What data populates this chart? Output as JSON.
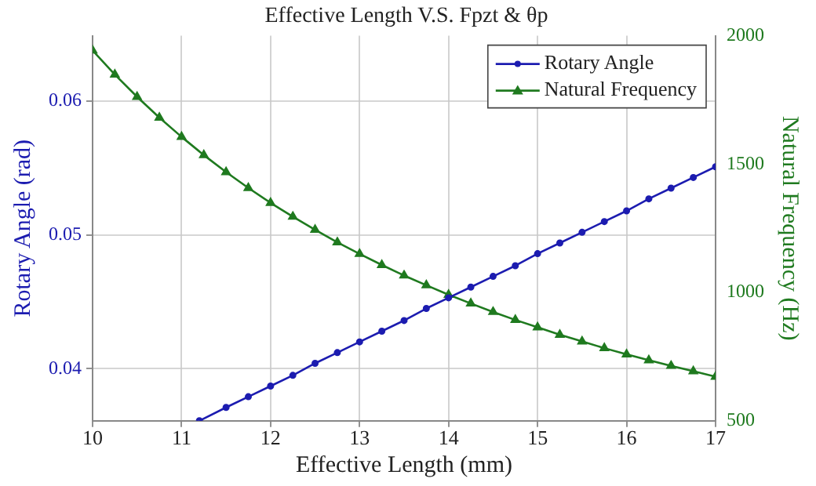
{
  "chart_data": {
    "type": "line",
    "title": "Effective Length V.S. Fpzt & θp",
    "xlabel": "Effective Length (mm)",
    "ylabel": "Rotary Angle (rad)",
    "y2label": "Natural Frequency (Hz)",
    "xlim": [
      10,
      17
    ],
    "xticks": [
      10,
      11,
      12,
      13,
      14,
      15,
      16,
      17
    ],
    "ylim": [
      0.0361,
      0.0649
    ],
    "yticks": [
      0.04,
      0.05,
      0.06
    ],
    "y2lim": [
      500,
      2000
    ],
    "y2ticks": [
      500,
      1000,
      1500,
      2000
    ],
    "grid": true,
    "legend": "top right",
    "series": [
      {
        "name": "Rotary Angle",
        "color": "#1c1cb0",
        "marker": "circle",
        "x": [
          11.2,
          11.5,
          11.75,
          12,
          12.25,
          12.5,
          12.75,
          13,
          13.25,
          13.5,
          13.75,
          14,
          14.25,
          14.5,
          14.75,
          15,
          15.25,
          15.5,
          15.75,
          16,
          16.25,
          16.5,
          16.75,
          17
        ],
        "values": [
          0.0361,
          0.0371,
          0.0379,
          0.0387,
          0.0395,
          0.0404,
          0.0412,
          0.042,
          0.0428,
          0.0436,
          0.0445,
          0.0453,
          0.0461,
          0.0469,
          0.0477,
          0.0486,
          0.0494,
          0.0502,
          0.051,
          0.0518,
          0.0527,
          0.0535,
          0.0543,
          0.0551
        ]
      },
      {
        "name": "Natural Frequency",
        "color": "#1f7a1f",
        "marker": "triangle",
        "axis": "y2",
        "x": [
          10,
          10.25,
          10.5,
          10.75,
          11,
          11.25,
          11.5,
          11.75,
          12,
          12.25,
          12.5,
          12.75,
          13,
          13.25,
          13.5,
          13.75,
          14,
          14.25,
          14.5,
          14.75,
          15,
          15.25,
          15.5,
          15.75,
          16,
          16.25,
          16.5,
          16.75,
          17
        ],
        "values": [
          1943,
          1849,
          1762,
          1681,
          1606,
          1535,
          1469,
          1407,
          1349,
          1295,
          1244,
          1195,
          1150,
          1107,
          1066,
          1028,
          991,
          957,
          924,
          893,
          864,
          835,
          809,
          783,
          759,
          736,
          714,
          693,
          672
        ]
      }
    ]
  }
}
